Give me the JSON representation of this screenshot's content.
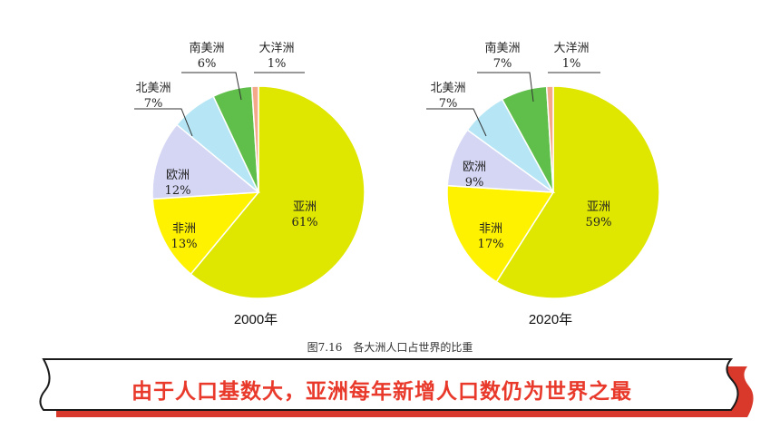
{
  "chart_data": [
    {
      "type": "pie",
      "title": "2000年",
      "slices": [
        {
          "label": "亚洲",
          "value": 61,
          "display": "61%",
          "color": "#dfe600"
        },
        {
          "label": "非洲",
          "value": 13,
          "display": "13%",
          "color": "#fff200"
        },
        {
          "label": "欧洲",
          "value": 12,
          "display": "12%",
          "color": "#d4d6f4"
        },
        {
          "label": "北美洲",
          "value": 7,
          "display": "7%",
          "color": "#b6e6f5"
        },
        {
          "label": "南美洲",
          "value": 6,
          "display": "6%",
          "color": "#5fbf4a"
        },
        {
          "label": "大洋洲",
          "value": 1,
          "display": "1%",
          "color": "#f3a98a"
        }
      ]
    },
    {
      "type": "pie",
      "title": "2020年",
      "slices": [
        {
          "label": "亚洲",
          "value": 59,
          "display": "59%",
          "color": "#dfe600"
        },
        {
          "label": "非洲",
          "value": 17,
          "display": "17%",
          "color": "#fff200"
        },
        {
          "label": "欧洲",
          "value": 9,
          "display": "9%",
          "color": "#d4d6f4"
        },
        {
          "label": "北美洲",
          "value": 7,
          "display": "7%",
          "color": "#b6e6f5"
        },
        {
          "label": "南美洲",
          "value": 7,
          "display": "7%",
          "color": "#5fbf4a"
        },
        {
          "label": "大洋洲",
          "value": 1,
          "display": "1%",
          "color": "#f3a98a"
        }
      ]
    }
  ],
  "caption": "图7.16　各大洲人口占世界的比重",
  "banner": {
    "text": "由于人口基数大，亚洲每年新增人口数仍为世界之最",
    "text_color": "#e8392b",
    "shadow_color": "#d9392b"
  }
}
